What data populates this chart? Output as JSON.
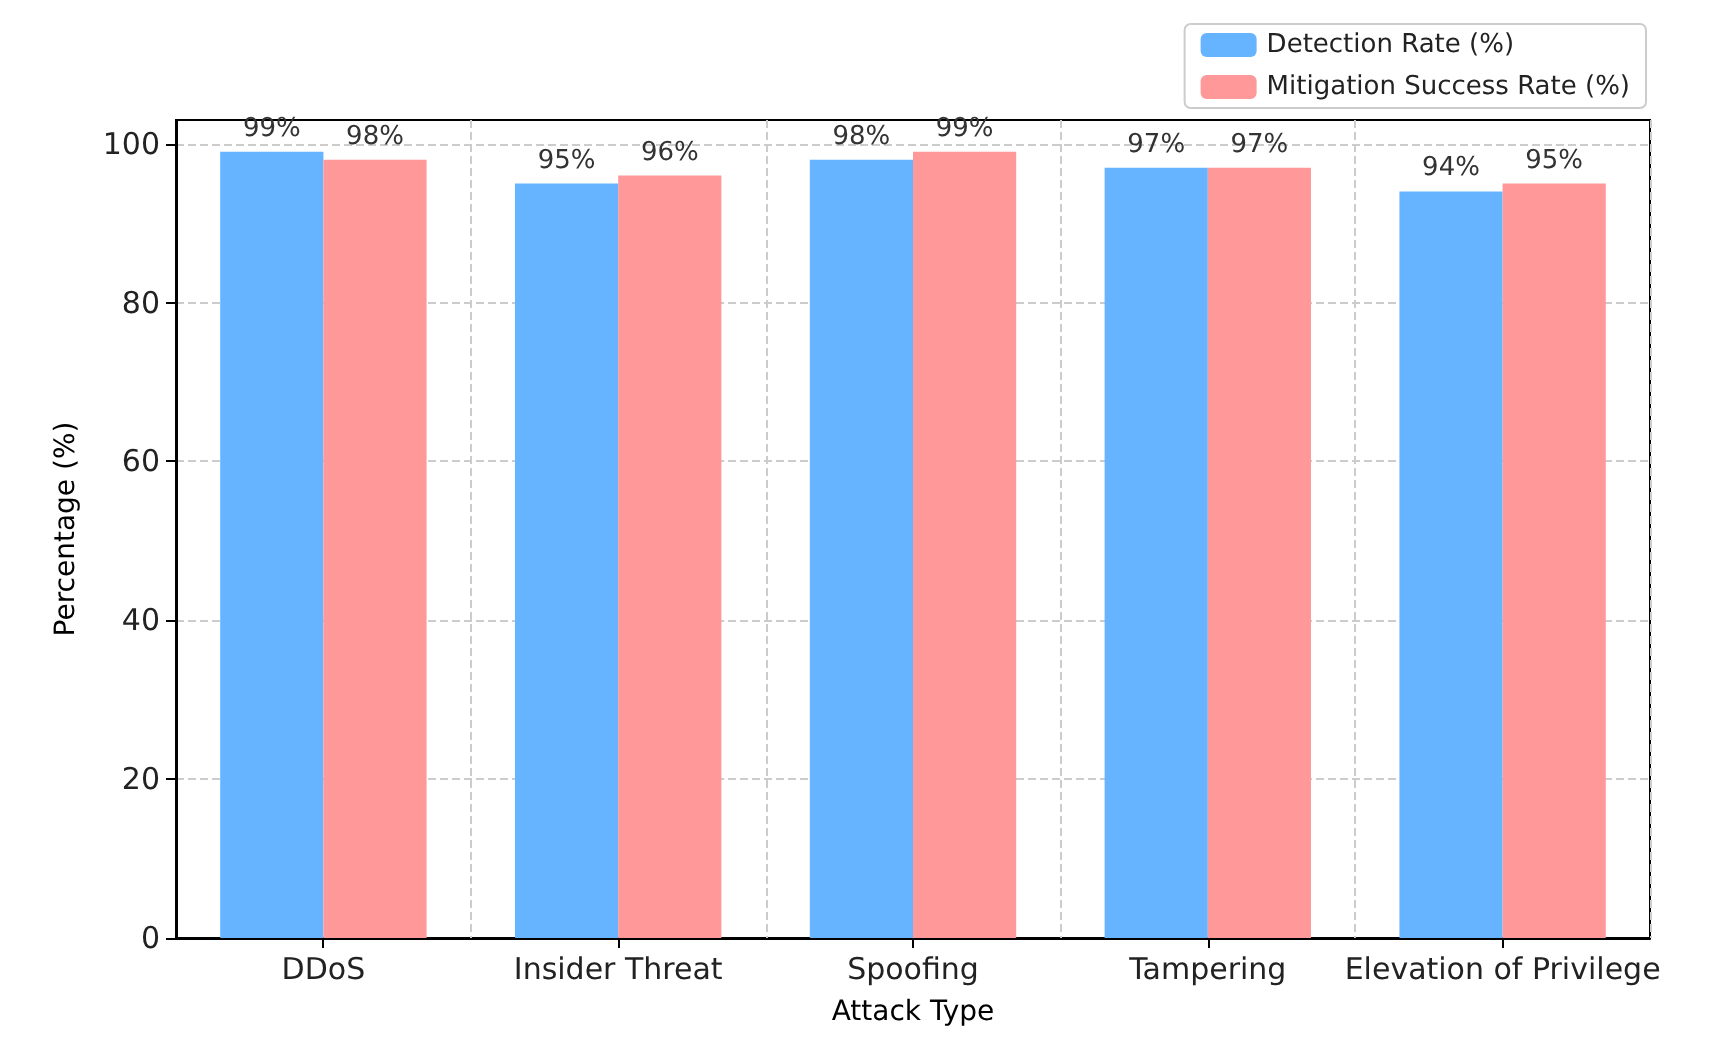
{
  "chart_data": {
    "type": "bar",
    "xlabel": "Attack Type",
    "ylabel": "Percentage (%)",
    "categories": [
      "DDoS",
      "Insider Threat",
      "Spoofing",
      "Tampering",
      "Elevation of Privilege"
    ],
    "series": [
      {
        "name": "Detection Rate (%)",
        "color": "#66b3ff",
        "values": [
          99,
          95,
          98,
          97,
          94
        ],
        "value_labels": [
          "99%",
          "95%",
          "98%",
          "97%",
          "94%"
        ]
      },
      {
        "name": "Mitigation Success Rate (%)",
        "color": "#ff9999",
        "values": [
          98,
          96,
          99,
          97,
          95
        ],
        "value_labels": [
          "98%",
          "96%",
          "99%",
          "97%",
          "95%"
        ]
      }
    ],
    "ylim": [
      0,
      103
    ],
    "yticks": [
      0,
      20,
      40,
      60,
      80,
      100
    ],
    "grid": true,
    "legend": "top right"
  }
}
